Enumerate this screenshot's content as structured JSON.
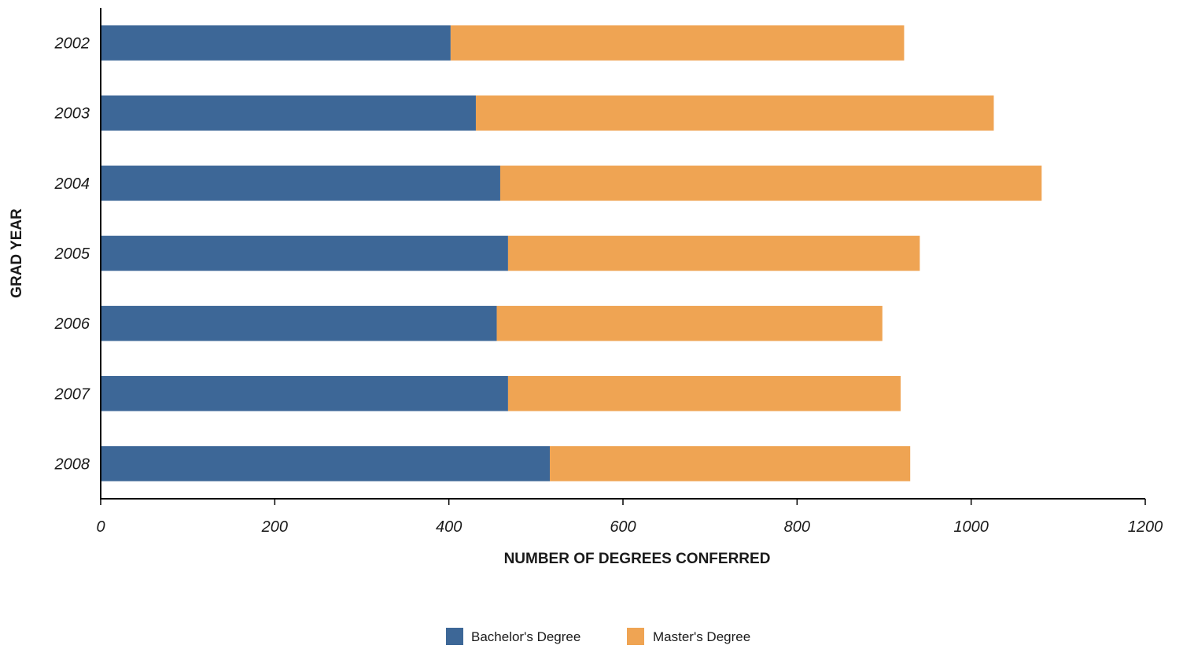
{
  "chart_data": {
    "type": "bar",
    "orientation": "horizontal",
    "stacked": true,
    "categories": [
      "2002",
      "2003",
      "2004",
      "2005",
      "2006",
      "2007",
      "2008"
    ],
    "series": [
      {
        "name": "Bachelor's Degree",
        "color": "#3d6797",
        "values": [
          402,
          431,
          459,
          468,
          455,
          468,
          516
        ]
      },
      {
        "name": "Master's Degree",
        "color": "#efa453",
        "values": [
          521,
          595,
          622,
          473,
          443,
          451,
          414
        ]
      }
    ],
    "xlabel": "NUMBER OF DEGREES CONFERRED",
    "ylabel": "GRAD YEAR",
    "xlim": [
      0,
      1200
    ],
    "xticks": [
      "0",
      "200",
      "400",
      "600",
      "800",
      "1000",
      "1200"
    ],
    "grid": false,
    "legend_position": "bottom"
  }
}
